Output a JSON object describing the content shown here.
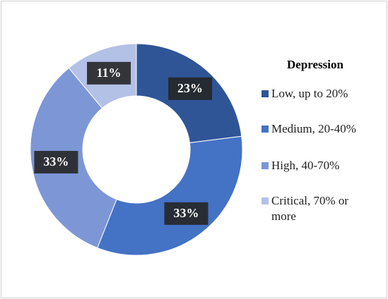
{
  "chart_data": {
    "type": "pie",
    "donut": true,
    "legend_title": "Depression",
    "categories": [
      "Low, up to 20%",
      "Medium, 20-40%",
      "High, 40-70%",
      "Critical, 70% or more"
    ],
    "values": [
      23,
      33,
      33,
      11
    ],
    "value_labels": [
      "23%",
      "33%",
      "33%",
      "11%"
    ],
    "colors": [
      "#2f5597",
      "#4472c4",
      "#7d96d6",
      "#b4c1e6"
    ],
    "legend": "right"
  }
}
